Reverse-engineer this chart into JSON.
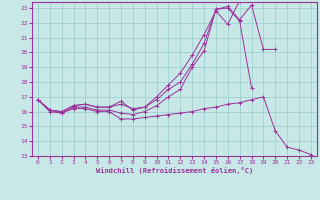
{
  "xlabel": "Windchill (Refroidissement éolien,°C)",
  "bg_color": "#c8e8e8",
  "line_color": "#993399",
  "grid_color": "#99cccc",
  "xlim": [
    -0.5,
    23.5
  ],
  "ylim": [
    13,
    23.4
  ],
  "xticks": [
    0,
    1,
    2,
    3,
    4,
    5,
    6,
    7,
    8,
    9,
    10,
    11,
    12,
    13,
    14,
    15,
    16,
    17,
    18,
    19,
    20,
    21,
    22,
    23
  ],
  "yticks": [
    13,
    14,
    15,
    16,
    17,
    18,
    19,
    20,
    21,
    22,
    23
  ],
  "lines": [
    {
      "x": [
        0,
        1,
        2,
        3,
        4,
        5,
        6,
        7,
        8,
        9,
        10,
        11,
        12,
        13,
        14,
        15,
        16,
        17,
        18,
        19,
        20,
        21,
        22,
        23
      ],
      "y": [
        16.8,
        16.0,
        15.9,
        16.3,
        16.3,
        16.1,
        16.1,
        15.9,
        15.8,
        16.0,
        16.4,
        17.0,
        17.5,
        19.0,
        20.1,
        22.9,
        23.0,
        22.1,
        17.6,
        null,
        null,
        null,
        null,
        null
      ]
    },
    {
      "x": [
        0,
        1,
        2,
        3,
        4,
        5,
        6,
        7,
        8,
        9,
        10,
        11,
        12,
        13,
        14,
        15,
        16,
        17,
        18,
        19,
        20,
        21,
        22,
        23
      ],
      "y": [
        16.8,
        16.1,
        16.0,
        16.4,
        16.5,
        16.3,
        16.3,
        16.7,
        16.1,
        16.3,
        17.0,
        17.8,
        18.6,
        19.8,
        21.2,
        22.8,
        21.9,
        23.5,
        null,
        null,
        null,
        null,
        null,
        null
      ]
    },
    {
      "x": [
        0,
        1,
        2,
        3,
        4,
        5,
        6,
        7,
        8,
        9,
        10,
        11,
        12,
        13,
        14,
        15,
        16,
        17,
        18,
        19,
        20
      ],
      "y": [
        16.8,
        16.1,
        16.0,
        16.4,
        16.5,
        16.3,
        16.3,
        16.5,
        16.2,
        16.3,
        16.8,
        17.5,
        18.0,
        19.2,
        20.6,
        22.9,
        23.1,
        22.2,
        23.2,
        20.2,
        20.2
      ]
    },
    {
      "x": [
        0,
        1,
        2,
        3,
        4,
        5,
        6,
        7,
        8,
        9,
        10,
        11,
        12,
        13,
        14,
        15,
        16,
        17,
        18,
        19,
        20,
        21,
        22,
        23
      ],
      "y": [
        16.8,
        16.1,
        15.9,
        16.2,
        16.2,
        16.0,
        16.0,
        15.5,
        15.5,
        15.6,
        15.7,
        15.8,
        15.9,
        16.0,
        16.2,
        16.3,
        16.5,
        16.6,
        16.8,
        17.0,
        14.7,
        13.6,
        13.4,
        13.1
      ]
    }
  ]
}
